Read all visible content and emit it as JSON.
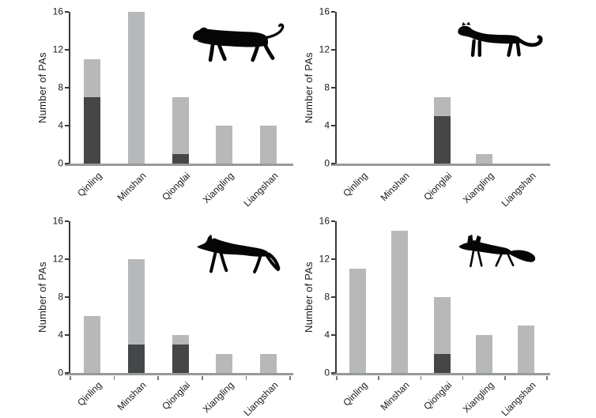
{
  "figure": {
    "ylabel": "Number of PAs",
    "categories": [
      "Qinling",
      "Minshan",
      "Qionglai",
      "Xiangling",
      "Liangshan"
    ],
    "y_ticks": [
      0,
      4,
      8,
      12,
      16
    ],
    "colors": {
      "bar_light": "#b6b8ba",
      "bar_dark": "#454648",
      "axis_y": "#38393b",
      "axis_x": "#97999b",
      "tick_x": "#77797b",
      "text": "#1a1a1a",
      "animal": "#060606"
    }
  },
  "chart_data": [
    {
      "type": "bar",
      "panel": "top-left",
      "icon": "leopard-silhouette",
      "ylabel": "Number of PAs",
      "categories": [
        "Qinling",
        "Minshan",
        "Qionglai",
        "Xiangling",
        "Liangshan"
      ],
      "series": [
        {
          "name": "dark-subset",
          "values": [
            7,
            0,
            1,
            0,
            0
          ]
        },
        {
          "name": "total",
          "values": [
            11,
            16,
            7,
            4,
            4
          ]
        }
      ],
      "ylim": [
        0,
        16
      ],
      "yticks": [
        0,
        4,
        8,
        12,
        16
      ],
      "x_boundary_ticks": false,
      "grid": false,
      "legend": false
    },
    {
      "type": "bar",
      "panel": "top-right",
      "icon": "snow-leopard-silhouette",
      "ylabel": "Number of PAs",
      "categories": [
        "Qinling",
        "Minshan",
        "Qionglai",
        "Xiangling",
        "Liangshan"
      ],
      "series": [
        {
          "name": "dark-subset",
          "values": [
            0,
            0,
            5,
            0,
            0
          ]
        },
        {
          "name": "total",
          "values": [
            0,
            0,
            7,
            1,
            0
          ]
        }
      ],
      "ylim": [
        0,
        16
      ],
      "yticks": [
        0,
        4,
        8,
        12,
        16
      ],
      "x_boundary_ticks": false,
      "grid": false,
      "legend": false
    },
    {
      "type": "bar",
      "panel": "bottom-left",
      "icon": "wolf-silhouette",
      "ylabel": "Number of PAs",
      "categories": [
        "Qinling",
        "Minshan",
        "Qionglai",
        "Xiangling",
        "Liangshan"
      ],
      "series": [
        {
          "name": "dark-subset",
          "values": [
            0,
            3,
            3,
            0,
            0
          ]
        },
        {
          "name": "total",
          "values": [
            6,
            12,
            4,
            2,
            2
          ]
        }
      ],
      "ylim": [
        0,
        16
      ],
      "yticks": [
        0,
        4,
        8,
        12,
        16
      ],
      "x_boundary_ticks": true,
      "grid": false,
      "legend": false
    },
    {
      "type": "bar",
      "panel": "bottom-right",
      "icon": "fox-silhouette",
      "ylabel": "Number of PAs",
      "categories": [
        "Qinling",
        "Minshan",
        "Qionglai",
        "Xiangling",
        "Liangshan"
      ],
      "series": [
        {
          "name": "dark-subset",
          "values": [
            0,
            0,
            2,
            0,
            0
          ]
        },
        {
          "name": "total",
          "values": [
            11,
            15,
            8,
            4,
            5
          ]
        }
      ],
      "ylim": [
        0,
        16
      ],
      "yticks": [
        0,
        4,
        8,
        12,
        16
      ],
      "x_boundary_ticks": true,
      "grid": false,
      "legend": false
    }
  ]
}
